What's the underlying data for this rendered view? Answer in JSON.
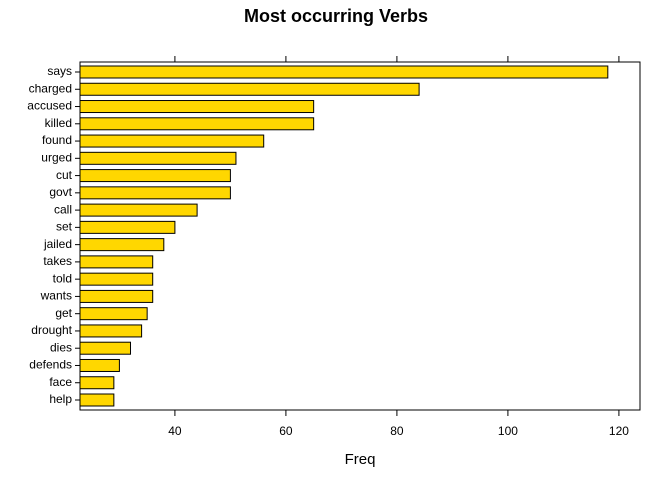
{
  "chart_data": {
    "type": "barh",
    "title": "Most occurring Verbs",
    "xlabel": "Freq",
    "categories": [
      "says",
      "charged",
      "accused",
      "killed",
      "found",
      "urged",
      "cut",
      "govt",
      "call",
      "set",
      "jailed",
      "takes",
      "told",
      "wants",
      "get",
      "drought",
      "dies",
      "defends",
      "face",
      "help"
    ],
    "values": [
      118,
      84,
      65,
      65,
      56,
      51,
      50,
      50,
      44,
      40,
      38,
      36,
      36,
      36,
      35,
      34,
      32,
      30,
      29,
      29
    ],
    "color": "#ffd700",
    "xlim": [
      22.9,
      123.8
    ],
    "xticks": [
      40,
      60,
      80,
      100,
      120
    ]
  }
}
